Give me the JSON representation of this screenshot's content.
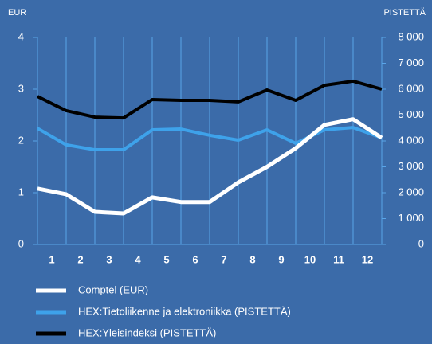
{
  "chart_data": {
    "type": "line",
    "y_label": "EUR",
    "y2_label": "PISTETTÄ",
    "x": [
      0,
      1,
      2,
      3,
      4,
      5,
      6,
      7,
      8,
      9,
      10,
      11,
      12
    ],
    "xlim": [
      0,
      12
    ],
    "xticks": [
      {
        "value": 0.5,
        "label": "1"
      },
      {
        "value": 1.5,
        "label": "2"
      },
      {
        "value": 2.5,
        "label": "3"
      },
      {
        "value": 3.5,
        "label": "4"
      },
      {
        "value": 4.5,
        "label": "5"
      },
      {
        "value": 5.5,
        "label": "6"
      },
      {
        "value": 6.5,
        "label": "7"
      },
      {
        "value": 7.5,
        "label": "8"
      },
      {
        "value": 8.5,
        "label": "9"
      },
      {
        "value": 9.5,
        "label": "10"
      },
      {
        "value": 10.5,
        "label": "11"
      },
      {
        "value": 11.5,
        "label": "12"
      }
    ],
    "ylim": [
      0,
      4
    ],
    "yticks": [
      0,
      1,
      2,
      3,
      4
    ],
    "y2lim": [
      0,
      8000
    ],
    "y2ticks": [
      0,
      {
        "value": 1000,
        "label": "1 000"
      },
      {
        "value": 2000,
        "label": "2 000"
      },
      {
        "value": 3000,
        "label": "3 000"
      },
      {
        "value": 4000,
        "label": "4 000"
      },
      {
        "value": 5000,
        "label": "5 000"
      },
      {
        "value": 6000,
        "label": "6 000"
      },
      {
        "value": 7000,
        "label": "7 000"
      },
      {
        "value": 8000,
        "label": "8 000"
      }
    ],
    "grid": true,
    "series": [
      {
        "name": "Comptel (EUR)",
        "color": "#ffffff",
        "values": [
          1.08,
          0.97,
          0.63,
          0.6,
          0.91,
          0.82,
          0.82,
          1.2,
          1.5,
          1.86,
          2.31,
          2.42,
          2.06
        ]
      },
      {
        "name": "HEX:Tietoliikenne ja elektroniikka (PISTETTÄ)",
        "color": "#3ea2ea",
        "axis": "y2",
        "values": [
          4490,
          3850,
          3660,
          3660,
          4430,
          4460,
          4220,
          4030,
          4430,
          3910,
          4430,
          4520,
          4120
        ]
      },
      {
        "name": "HEX:Yleisindeksi (PISTETTÄ)",
        "color": "#000000",
        "axis": "y2",
        "values": [
          5720,
          5170,
          4920,
          4890,
          5600,
          5570,
          5570,
          5510,
          5970,
          5570,
          6150,
          6310,
          6000
        ]
      }
    ]
  }
}
